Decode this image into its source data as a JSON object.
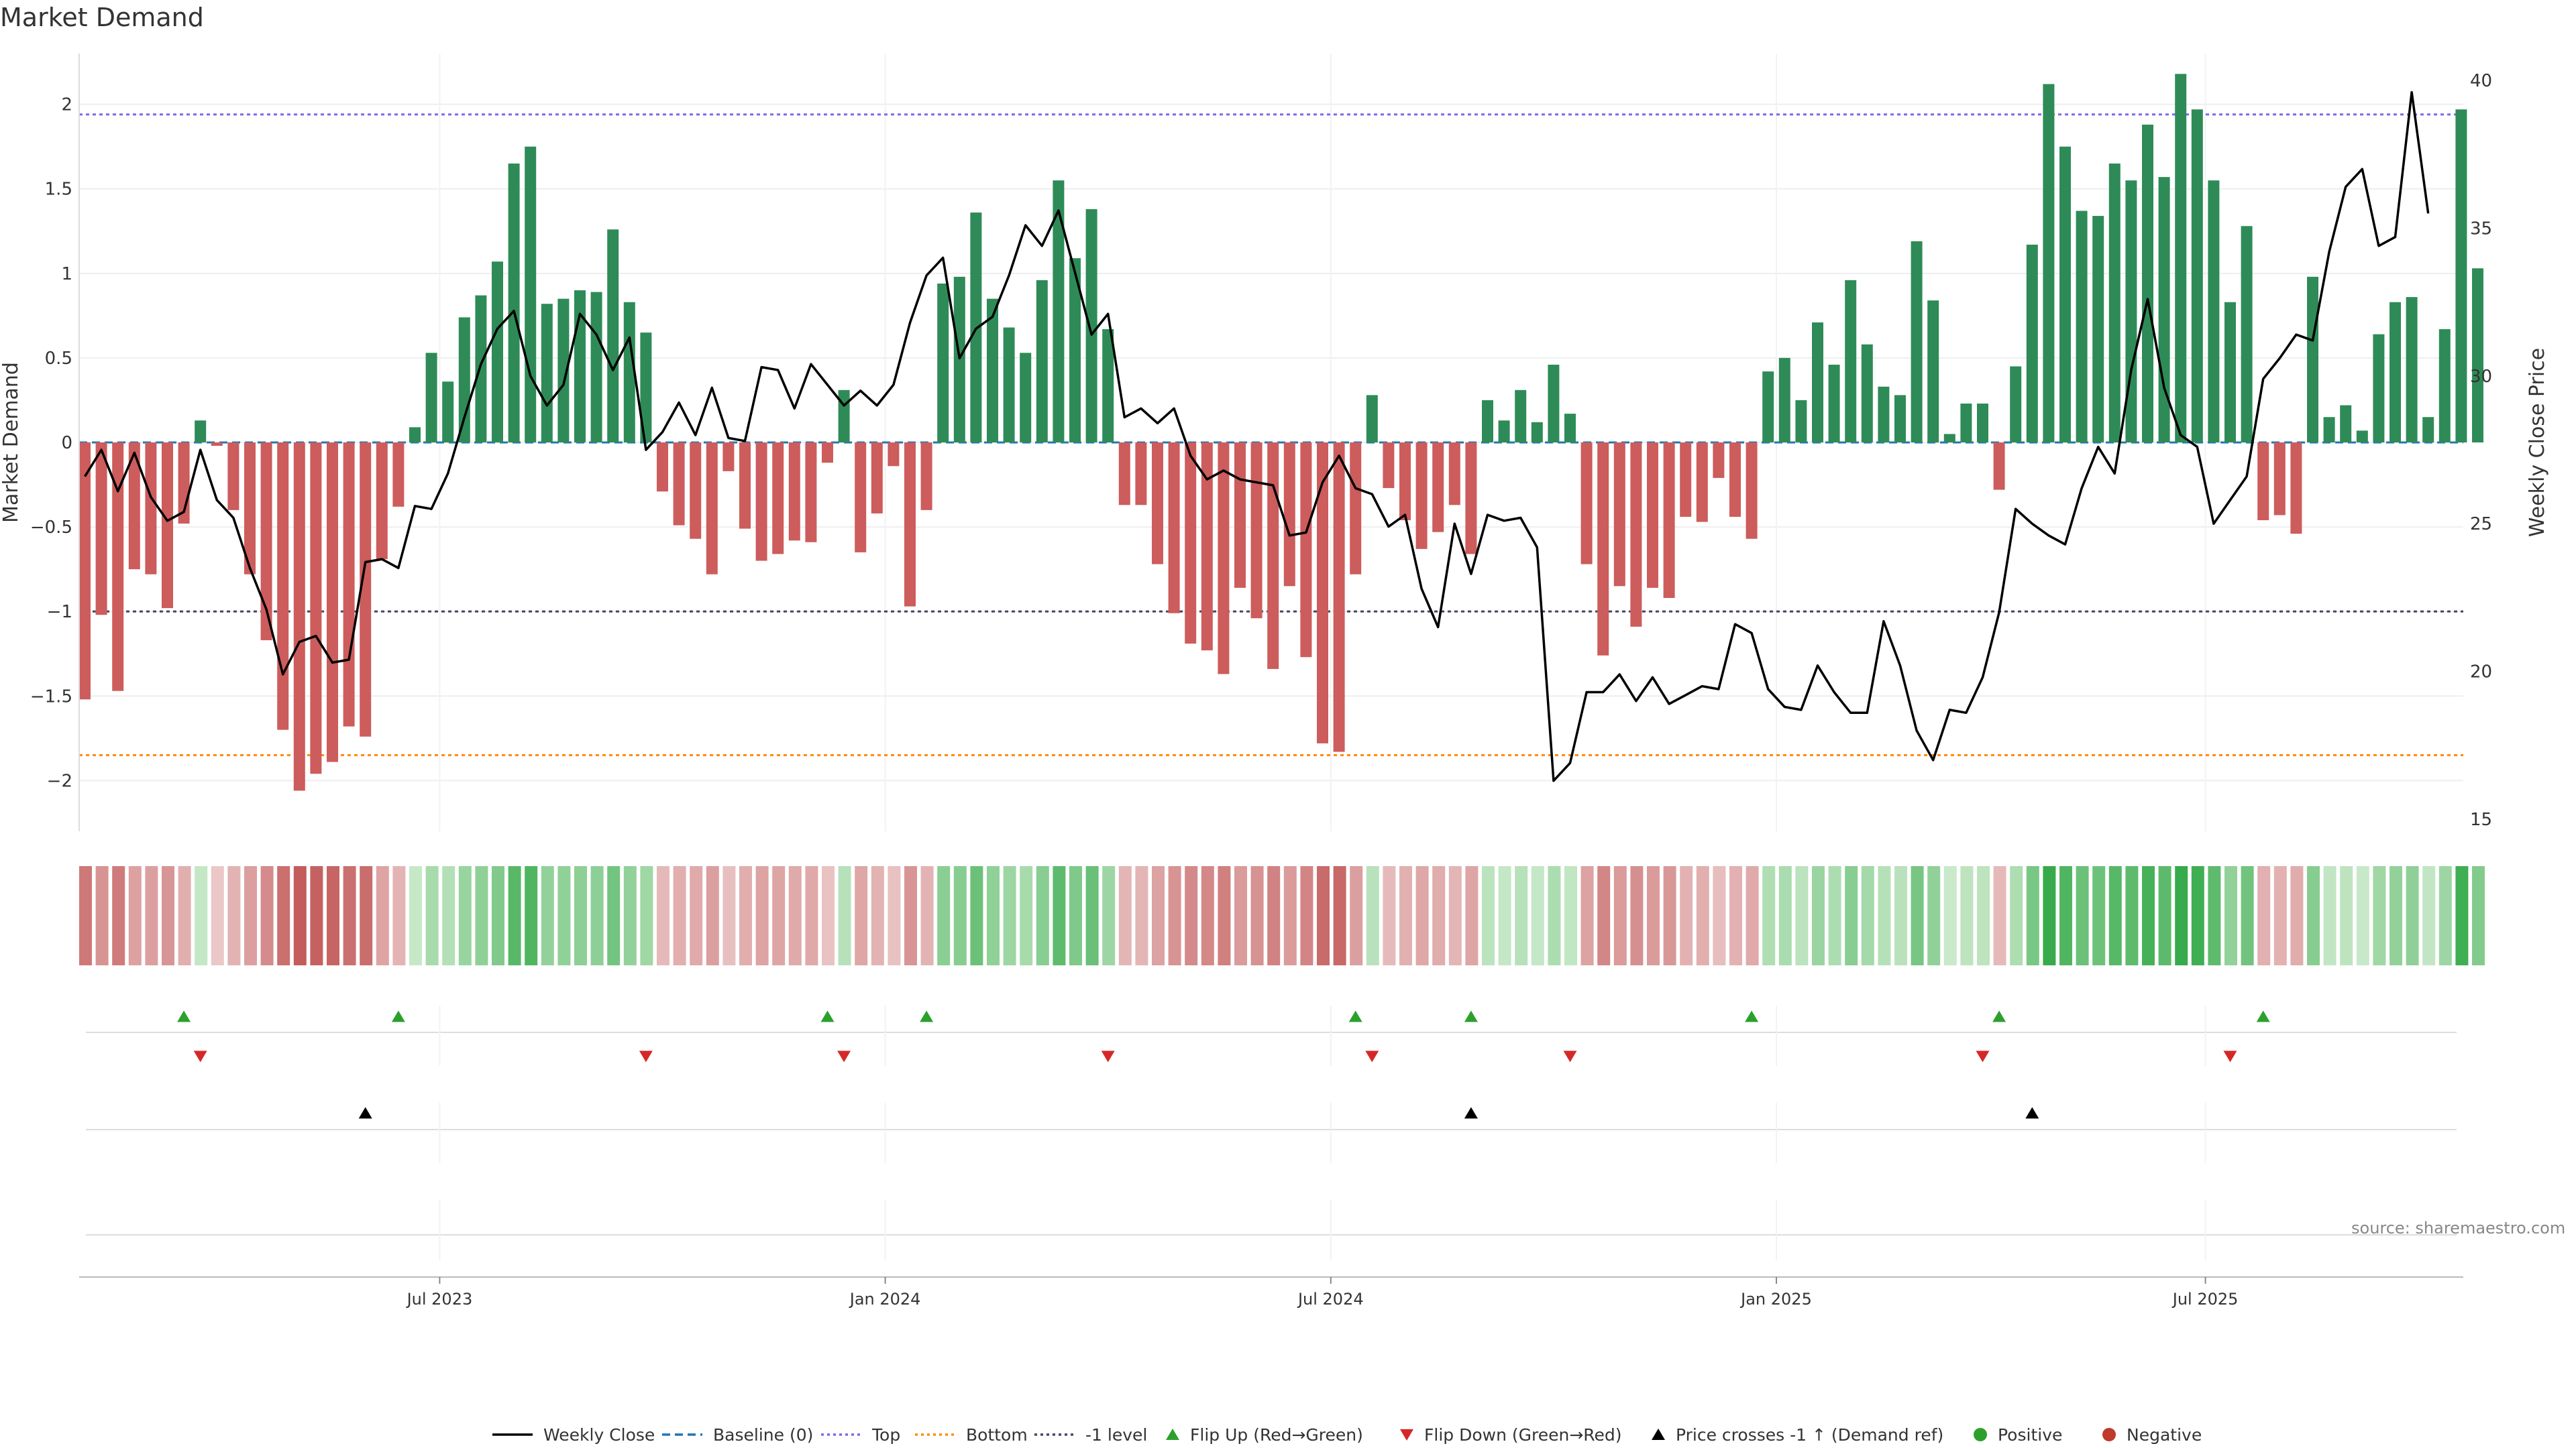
{
  "title": "Market Demand",
  "source": "source: sharemaestro.com",
  "legend": [
    {
      "label": "Weekly Close",
      "kind": "line",
      "color": "#000000",
      "dash": "solid"
    },
    {
      "label": "Baseline (0)",
      "kind": "line",
      "color": "#1f77b4",
      "dash": "dashed"
    },
    {
      "label": "Top",
      "kind": "line",
      "color": "#7b68ee",
      "dash": "dotted"
    },
    {
      "label": "Bottom",
      "kind": "line",
      "color": "#ff8c00",
      "dash": "dotted"
    },
    {
      "label": "-1 level",
      "kind": "line",
      "color": "#444466",
      "dash": "dotted"
    },
    {
      "label": "Flip Up (Red→Green)",
      "kind": "tri-up",
      "color": "#2ca02c"
    },
    {
      "label": "Flip Down (Green→Red)",
      "kind": "tri-down",
      "color": "#d62728"
    },
    {
      "label": "Price crosses -1 ↑ (Demand ref)",
      "kind": "tri-up",
      "color": "#000000"
    },
    {
      "label": "Positive",
      "kind": "dot",
      "color": "#2ca02c"
    },
    {
      "label": "Negative",
      "kind": "dot",
      "color": "#c0392b"
    }
  ],
  "chart_data": {
    "type": "bar",
    "x_labels": [
      "Jul 2023",
      "Jan 2024",
      "Jul 2024",
      "Jan 2025",
      "Jul 2025"
    ],
    "x_label_weeks": [
      21.5,
      48.5,
      75.5,
      102.5,
      128.5
    ],
    "ylabel_left": "Market Demand",
    "ylabel_right": "Weekly Close Price",
    "ylim_left": [
      -2.3,
      2.3
    ],
    "yticks_left": [
      2,
      1.5,
      1,
      0.5,
      0,
      -0.5,
      -1,
      -1.5,
      -2
    ],
    "ylim_right": [
      15,
      40
    ],
    "yticks_right": [
      40,
      35,
      30,
      25,
      20,
      15
    ],
    "levels": {
      "top": 1.94,
      "bottom": -1.85,
      "minus_one": -1.0,
      "baseline": 0
    },
    "colors": {
      "positive": "#2e8b57",
      "negative": "#cd5c5c",
      "price": "#000000"
    },
    "demand": [
      -1.52,
      -1.02,
      -1.47,
      -0.75,
      -0.78,
      -0.98,
      -0.48,
      0.13,
      -0.02,
      -0.4,
      -0.78,
      -1.17,
      -1.7,
      -2.06,
      -1.96,
      -1.89,
      -1.68,
      -1.74,
      -0.69,
      -0.38,
      0.09,
      0.53,
      0.36,
      0.74,
      0.87,
      1.07,
      1.65,
      1.75,
      0.82,
      0.85,
      0.9,
      0.89,
      1.26,
      0.83,
      0.65,
      -0.29,
      -0.49,
      -0.57,
      -0.78,
      -0.17,
      -0.51,
      -0.7,
      -0.66,
      -0.58,
      -0.59,
      -0.12,
      0.31,
      -0.65,
      -0.42,
      -0.14,
      -0.97,
      -0.4,
      0.94,
      0.98,
      1.36,
      0.85,
      0.68,
      0.53,
      0.96,
      1.55,
      1.09,
      1.38,
      0.67,
      -0.37,
      -0.37,
      -0.72,
      -1.01,
      -1.19,
      -1.23,
      -1.37,
      -0.86,
      -1.04,
      -1.34,
      -0.85,
      -1.27,
      -1.78,
      -1.83,
      -0.78,
      0.28,
      -0.27,
      -0.46,
      -0.63,
      -0.53,
      -0.37,
      -0.66,
      0.25,
      0.13,
      0.31,
      0.12,
      0.46,
      0.17,
      -0.72,
      -1.26,
      -0.85,
      -1.09,
      -0.86,
      -0.92,
      -0.44,
      -0.47,
      -0.21,
      -0.44,
      -0.57,
      0.42,
      0.5,
      0.25,
      0.71,
      0.46,
      0.96,
      0.58,
      0.33,
      0.28,
      1.19,
      0.84,
      0.05,
      0.23,
      0.23,
      -0.28,
      0.45,
      1.17,
      2.12,
      1.75,
      1.37,
      1.34,
      1.65,
      1.55,
      1.88,
      1.57,
      2.18,
      1.97,
      1.55,
      0.83,
      1.28,
      -0.46,
      -0.43,
      -0.54,
      0.98,
      0.15,
      0.22,
      0.07,
      0.64,
      0.83,
      0.86,
      0.15,
      0.67,
      1.97,
      1.03
    ],
    "weekly_close": [
      26.6,
      27.5,
      26.1,
      27.4,
      25.9,
      25.1,
      25.4,
      27.5,
      25.8,
      25.2,
      23.5,
      22.1,
      19.9,
      21.0,
      21.2,
      20.3,
      20.4,
      23.7,
      23.8,
      23.5,
      25.6,
      25.5,
      26.7,
      28.6,
      30.4,
      31.6,
      32.2,
      30.0,
      29.0,
      29.7,
      32.1,
      31.4,
      30.2,
      31.3,
      27.5,
      28.1,
      29.1,
      28.0,
      29.6,
      27.9,
      27.8,
      30.3,
      30.2,
      28.9,
      30.4,
      29.7,
      29.0,
      29.5,
      29.0,
      29.7,
      31.8,
      33.4,
      34.0,
      30.6,
      31.6,
      32.0,
      33.4,
      35.1,
      34.4,
      35.6,
      33.5,
      31.4,
      32.1,
      28.6,
      28.9,
      28.4,
      28.9,
      27.3,
      26.5,
      26.8,
      26.5,
      26.4,
      26.3,
      24.6,
      24.7,
      26.4,
      27.3,
      26.2,
      26.0,
      24.9,
      25.3,
      22.8,
      21.5,
      25.0,
      23.3,
      25.3,
      25.1,
      25.2,
      24.2,
      16.3,
      16.9,
      19.3,
      19.3,
      19.9,
      19.0,
      19.8,
      18.9,
      19.2,
      19.5,
      19.4,
      21.6,
      21.3,
      19.4,
      18.8,
      18.7,
      20.2,
      19.3,
      18.6,
      18.6,
      21.7,
      20.2,
      18.0,
      17.0,
      18.7,
      18.6,
      19.8,
      22.0,
      25.5,
      25.0,
      24.6,
      24.3,
      26.2,
      27.6,
      26.7,
      30.2,
      32.6,
      29.6,
      28.0,
      27.6,
      25.0,
      25.8,
      26.6,
      29.9,
      30.6,
      31.4,
      31.2,
      34.2,
      36.4,
      37.0,
      34.4,
      34.7,
      39.6,
      35.5
    ],
    "flip_up_weeks": [
      6,
      19,
      45,
      51,
      77,
      84,
      101,
      116,
      132
    ],
    "flip_down_weeks": [
      7,
      34,
      46,
      62,
      78,
      90,
      115,
      130
    ],
    "price_cross_weeks": [
      17,
      84,
      118
    ]
  }
}
